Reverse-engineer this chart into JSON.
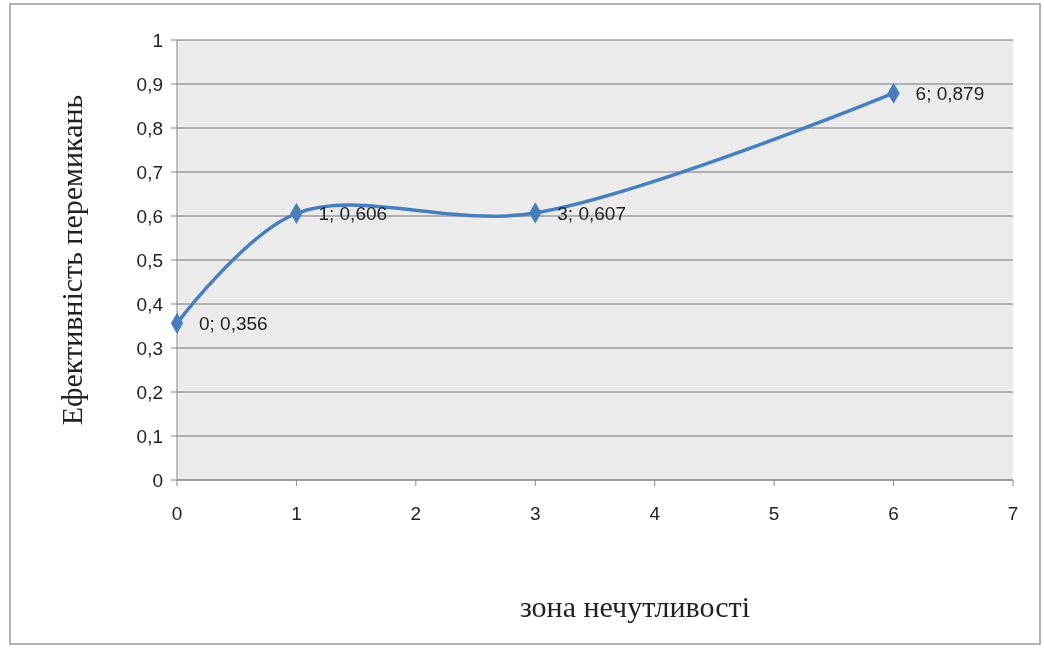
{
  "chart_data": {
    "type": "line",
    "xlabel": "зона нечутливості",
    "ylabel": "Ефективність перемикань",
    "x": [
      0,
      1,
      3,
      6
    ],
    "series": [
      {
        "color": "#4a7ebb",
        "values": [
          0.356,
          0.606,
          0.607,
          0.879
        ],
        "value_labels": [
          "0; 0,356",
          "1; 0,606",
          "3; 0,607",
          "6; 0,879"
        ]
      }
    ],
    "xlim": [
      0,
      7
    ],
    "xticks": [
      0,
      1,
      2,
      3,
      4,
      5,
      6,
      7
    ],
    "ylim": [
      0,
      1
    ],
    "yticks": [
      0,
      {
        "value": 0.1,
        "label": "0,1"
      },
      {
        "value": 0.2,
        "label": "0,2"
      },
      {
        "value": 0.3,
        "label": "0,3"
      },
      {
        "value": 0.4,
        "label": "0,4"
      },
      {
        "value": 0.5,
        "label": "0,5"
      },
      {
        "value": 0.6,
        "label": "0,6"
      },
      {
        "value": 0.7,
        "label": "0,7"
      },
      {
        "value": 0.8,
        "label": "0,8"
      },
      {
        "value": 0.9,
        "label": "0,9"
      },
      1
    ],
    "grid": "y",
    "marker": "diamond",
    "line_style": "solid"
  }
}
